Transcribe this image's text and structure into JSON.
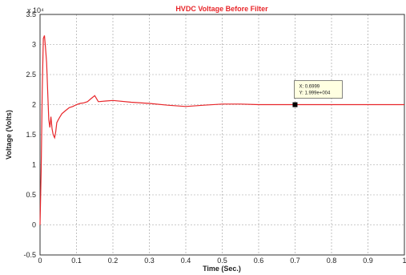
{
  "chart_data": {
    "type": "line",
    "title": "HVDC Voltage Before Filter",
    "xlabel": "Time (Sec.)",
    "ylabel": "Voltage (Volts)",
    "xlim": [
      0,
      1
    ],
    "ylim": [
      -0.5,
      3.5
    ],
    "y_exponent_label": "x 10⁴",
    "x_ticks": [
      "0",
      "0.1",
      "0.2",
      "0.3",
      "0.4",
      "0.5",
      "0.6",
      "0.7",
      "0.8",
      "0.9",
      "1"
    ],
    "y_ticks": [
      "-0.5",
      "0",
      "0.5",
      "1",
      "1.5",
      "2",
      "2.5",
      "3",
      "3.5"
    ],
    "grid": true,
    "line_color": "#e8262a",
    "series": [
      {
        "x": [
          0,
          0.003,
          0.006,
          0.009,
          0.012,
          0.015,
          0.018,
          0.021,
          0.024,
          0.027,
          0.03,
          0.033,
          0.036,
          0.04,
          0.043,
          0.046,
          0.05,
          0.055,
          0.06,
          0.07,
          0.08,
          0.09,
          0.1,
          0.11,
          0.12,
          0.13,
          0.14,
          0.15,
          0.16,
          0.18,
          0.2,
          0.25,
          0.3,
          0.35,
          0.4,
          0.45,
          0.5,
          0.55,
          0.6,
          0.65,
          0.7,
          0.8,
          0.9,
          1.0
        ],
        "y": [
          0,
          0.9,
          2.2,
          3.1,
          3.15,
          2.95,
          2.7,
          2.2,
          1.75,
          1.62,
          1.8,
          1.6,
          1.5,
          1.45,
          1.55,
          1.7,
          1.75,
          1.8,
          1.85,
          1.9,
          1.95,
          1.97,
          2.0,
          2.02,
          2.03,
          2.05,
          2.1,
          2.15,
          2.05,
          2.06,
          2.07,
          2.04,
          2.02,
          1.99,
          1.97,
          1.99,
          2.01,
          2.01,
          2.0,
          2.0,
          2.0,
          2.0,
          2.0,
          2.0
        ]
      }
    ],
    "datatip": {
      "x_label": "X: 0.6999",
      "y_label": "Y: 1.999e+004",
      "x": 0.6999,
      "y": 1.999
    }
  }
}
